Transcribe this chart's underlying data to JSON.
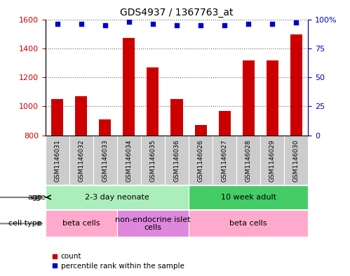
{
  "title": "GDS4937 / 1367763_at",
  "samples": [
    "GSM1146031",
    "GSM1146032",
    "GSM1146033",
    "GSM1146034",
    "GSM1146035",
    "GSM1146036",
    "GSM1146026",
    "GSM1146027",
    "GSM1146028",
    "GSM1146029",
    "GSM1146030"
  ],
  "counts": [
    1052,
    1070,
    910,
    1470,
    1268,
    1052,
    870,
    968,
    1315,
    1315,
    1495
  ],
  "percentile_ranks": [
    96,
    96,
    95,
    98,
    96,
    95,
    95,
    95,
    96,
    96,
    97
  ],
  "ylim_left": [
    800,
    1600
  ],
  "ylim_right": [
    0,
    100
  ],
  "yticks_left": [
    800,
    1000,
    1200,
    1400,
    1600
  ],
  "yticks_right": [
    0,
    25,
    50,
    75,
    100
  ],
  "bar_color": "#CC0000",
  "dot_color": "#0000CC",
  "bar_width": 0.5,
  "age_groups": [
    {
      "label": "2-3 day neonate",
      "start": 0,
      "end": 6,
      "color": "#AAEEBB"
    },
    {
      "label": "10 week adult",
      "start": 6,
      "end": 11,
      "color": "#44CC66"
    }
  ],
  "cell_type_groups": [
    {
      "label": "beta cells",
      "start": 0,
      "end": 3,
      "color": "#FFAACC"
    },
    {
      "label": "non-endocrine islet\ncells",
      "start": 3,
      "end": 6,
      "color": "#DD88DD"
    },
    {
      "label": "beta cells",
      "start": 6,
      "end": 11,
      "color": "#FFAACC"
    }
  ],
  "legend_red_label": "count",
  "legend_blue_label": "percentile rank within the sample",
  "age_label": "age",
  "cell_type_label": "cell type",
  "sample_bg_color": "#CCCCCC",
  "border_color": "#888888"
}
